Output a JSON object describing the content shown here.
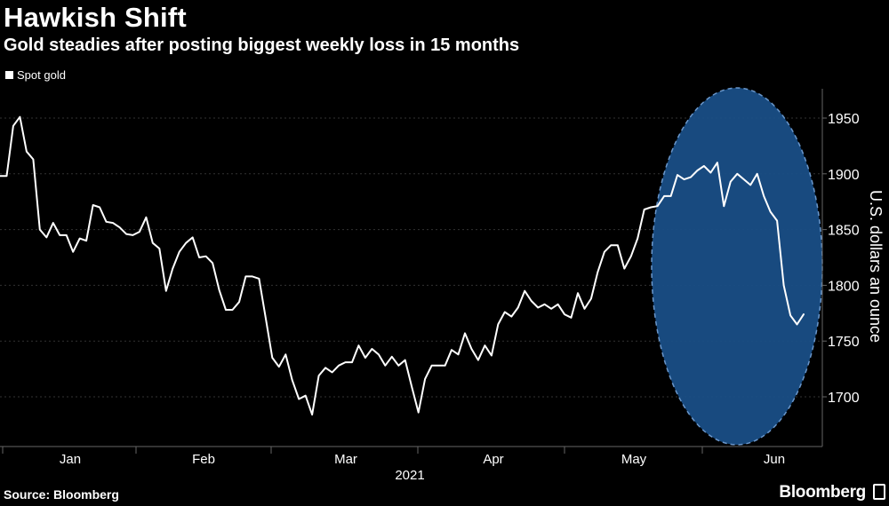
{
  "header": {
    "title": "Hawkish Shift",
    "subtitle": "Gold steadies after posting biggest weekly loss in 15 months"
  },
  "footer": {
    "source": "Source: Bloomberg",
    "brand": "Bloomberg"
  },
  "colors": {
    "background": "#000000",
    "line": "#ffffff",
    "highlight_fill": "#1a4f86",
    "highlight_stroke": "#6f9fd6",
    "grid": "#333333",
    "axis": "#666666"
  },
  "chart_data": {
    "type": "line",
    "title": "Hawkish Shift",
    "subtitle": "Gold steadies after posting biggest weekly loss in 15 months",
    "ylabel": "U.S. dollars an ounce",
    "xlabel": "2021",
    "ylim": [
      1660,
      1975
    ],
    "y_ticks": [
      1700,
      1750,
      1800,
      1850,
      1900,
      1950
    ],
    "x_ticks": [
      "Jan",
      "Feb",
      "Mar",
      "Apr",
      "May",
      "Jun"
    ],
    "legend": [
      "Spot gold"
    ],
    "legend_position": "top-left",
    "highlight": "dashed ellipse around late May to June",
    "series": [
      {
        "name": "Spot gold",
        "values": [
          1898,
          1898,
          1943,
          1951,
          1920,
          1913,
          1850,
          1843,
          1856,
          1845,
          1845,
          1830,
          1842,
          1840,
          1872,
          1870,
          1857,
          1856,
          1852,
          1846,
          1845,
          1848,
          1861,
          1838,
          1833,
          1795,
          1815,
          1830,
          1838,
          1843,
          1825,
          1826,
          1820,
          1796,
          1778,
          1778,
          1785,
          1808,
          1808,
          1806,
          1771,
          1735,
          1727,
          1738,
          1715,
          1698,
          1701,
          1684,
          1719,
          1726,
          1722,
          1728,
          1731,
          1731,
          1746,
          1735,
          1743,
          1738,
          1728,
          1736,
          1728,
          1733,
          1709,
          1686,
          1716,
          1728,
          1728,
          1728,
          1742,
          1738,
          1757,
          1743,
          1733,
          1746,
          1737,
          1765,
          1776,
          1772,
          1780,
          1795,
          1786,
          1780,
          1783,
          1779,
          1783,
          1774,
          1771,
          1793,
          1779,
          1788,
          1812,
          1830,
          1836,
          1836,
          1815,
          1826,
          1842,
          1868,
          1870,
          1871,
          1880,
          1880,
          1899,
          1895,
          1897,
          1903,
          1907,
          1901,
          1910,
          1871,
          1893,
          1900,
          1895,
          1890,
          1900,
          1880,
          1866,
          1858,
          1800,
          1773,
          1765,
          1774
        ]
      }
    ]
  }
}
